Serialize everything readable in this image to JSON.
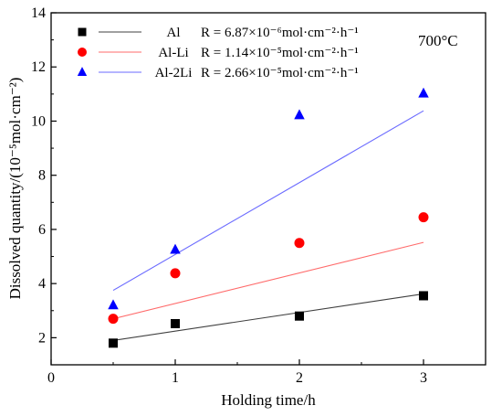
{
  "chart_data": {
    "type": "scatter",
    "xlabel": "Holding time/h",
    "ylabel": "Dissolved quantity/(10⁻⁵mol·cm⁻²)",
    "xlim": [
      0,
      3.5
    ],
    "ylim": [
      1,
      14
    ],
    "xticks": [
      "0",
      "1",
      "2",
      "3"
    ],
    "yticks": [
      "2",
      "4",
      "6",
      "8",
      "10",
      "12",
      "14"
    ],
    "grid": false,
    "legend_position": "top-left",
    "annotation": "700°C",
    "series": [
      {
        "name": "Al",
        "rate_label": "R = 6.87×10⁻⁶mol·cm⁻²·h⁻¹",
        "marker": "square",
        "color": "#000000",
        "line_color": "#404040",
        "x": [
          0.5,
          1,
          2,
          3
        ],
        "y": [
          1.8,
          2.52,
          2.8,
          3.55
        ],
        "fit": [
          [
            0.5,
            1.9
          ],
          [
            3,
            3.62
          ]
        ]
      },
      {
        "name": "Al-Li",
        "rate_label": "R = 1.14×10⁻⁵mol·cm⁻²·h⁻¹",
        "marker": "circle",
        "color": "#ff0000",
        "line_color": "#ff6b6b",
        "x": [
          0.5,
          1,
          2,
          3
        ],
        "y": [
          2.7,
          4.38,
          5.5,
          6.45
        ],
        "fit": [
          [
            0.5,
            2.7
          ],
          [
            3,
            5.52
          ]
        ]
      },
      {
        "name": "Al-2Li",
        "rate_label": "R = 2.66×10⁻⁵mol·cm⁻²·h⁻¹",
        "marker": "triangle",
        "color": "#0000ff",
        "line_color": "#6b6bff",
        "x": [
          0.5,
          1,
          2,
          3
        ],
        "y": [
          3.2,
          5.25,
          10.22,
          11.02
        ],
        "fit": [
          [
            0.5,
            3.75
          ],
          [
            3,
            10.38
          ]
        ]
      }
    ]
  }
}
